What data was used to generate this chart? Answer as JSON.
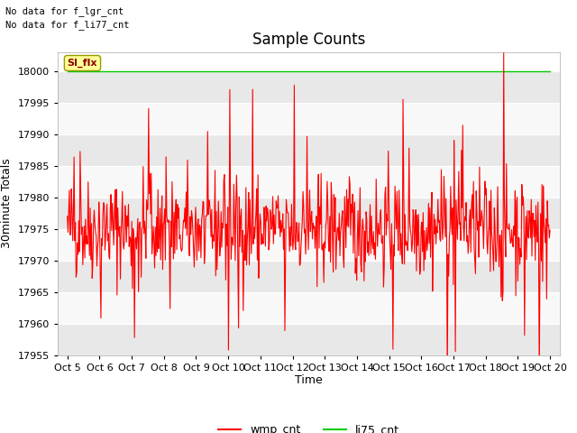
{
  "title": "Sample Counts",
  "ylabel": "30minute Totals",
  "xlabel": "Time",
  "ylim": [
    17955,
    18003
  ],
  "yticks": [
    17955,
    17960,
    17965,
    17970,
    17975,
    17980,
    17985,
    17990,
    17995,
    18000
  ],
  "xtick_labels": [
    "Oct 5",
    "Oct 6",
    "Oct 7",
    "Oct 8",
    "Oct 9",
    "Oct 10",
    "Oct 11",
    "Oct 12",
    "Oct 13",
    "Oct 14",
    "Oct 15",
    "Oct 16",
    "Oct 17",
    "Oct 18",
    "Oct 19",
    "Oct 20"
  ],
  "no_data_texts": [
    "No data for f_lgr_cnt",
    "No data for f_li77_cnt"
  ],
  "annotation_text": "SI_flx",
  "annotation_bg": "#ffff99",
  "annotation_fg": "#8b0000",
  "green_line_y": 18000,
  "legend_entries": [
    "wmp_cnt",
    "li75_cnt"
  ],
  "legend_colors": [
    "red",
    "#00cc00"
  ],
  "bg_color": "#ffffff",
  "plot_bg_color": "#ffffff",
  "band_colors": [
    "#e8e8e8",
    "#f8f8f8"
  ],
  "grid_color": "#cccccc",
  "title_fontsize": 12,
  "axis_label_fontsize": 9,
  "tick_fontsize": 8,
  "n_points": 720,
  "seed": 42,
  "wmp_mean": 17975,
  "wmp_std": 4,
  "wmp_spike_up_prob": 0.03,
  "wmp_spike_down_prob": 0.03,
  "wmp_spike_up_mag_min": 8,
  "wmp_spike_up_mag_max": 25,
  "wmp_spike_down_mag_min": 8,
  "wmp_spike_down_mag_max": 18
}
